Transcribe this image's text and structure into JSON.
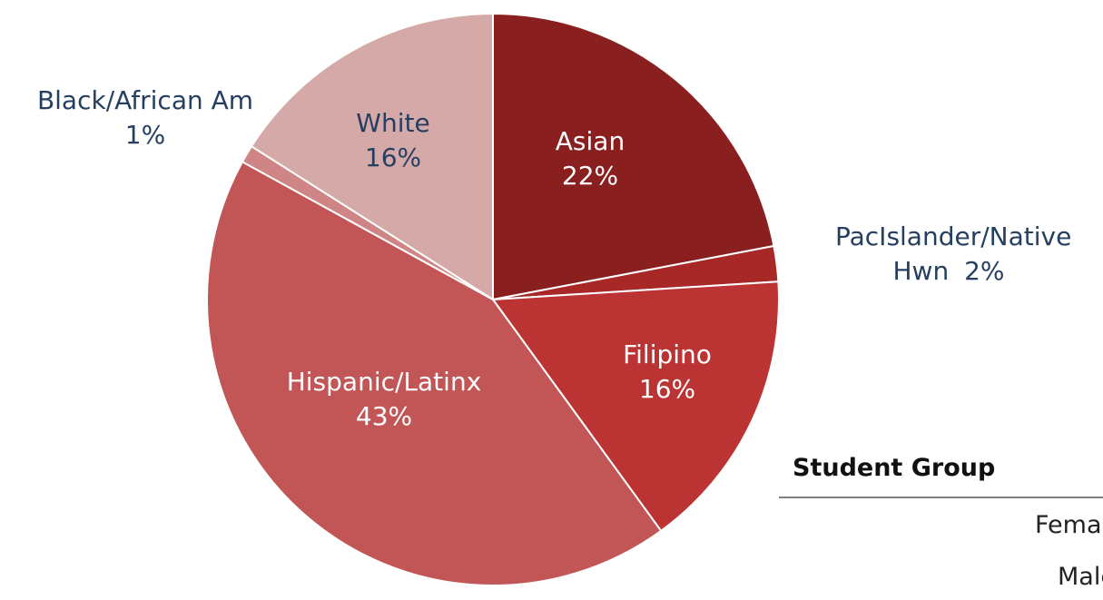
{
  "chart_data": {
    "type": "pie",
    "categories": [
      "Asian",
      "PacIslander/Native Hwn",
      "Filipino",
      "Hispanic/Latinx",
      "Black/African Am",
      "White"
    ],
    "values": [
      22,
      2,
      16,
      43,
      1,
      16
    ],
    "value_labels": [
      "22%",
      "2%",
      "16%",
      "43%",
      "1%",
      "16%"
    ],
    "colors": [
      "#8a1f1f",
      "#a82828",
      "#bb3333",
      "#c25555",
      "#cf8585",
      "#d6a9a9"
    ]
  },
  "table": {
    "header": "Student Group",
    "rows": [
      "Female",
      "Male"
    ]
  }
}
